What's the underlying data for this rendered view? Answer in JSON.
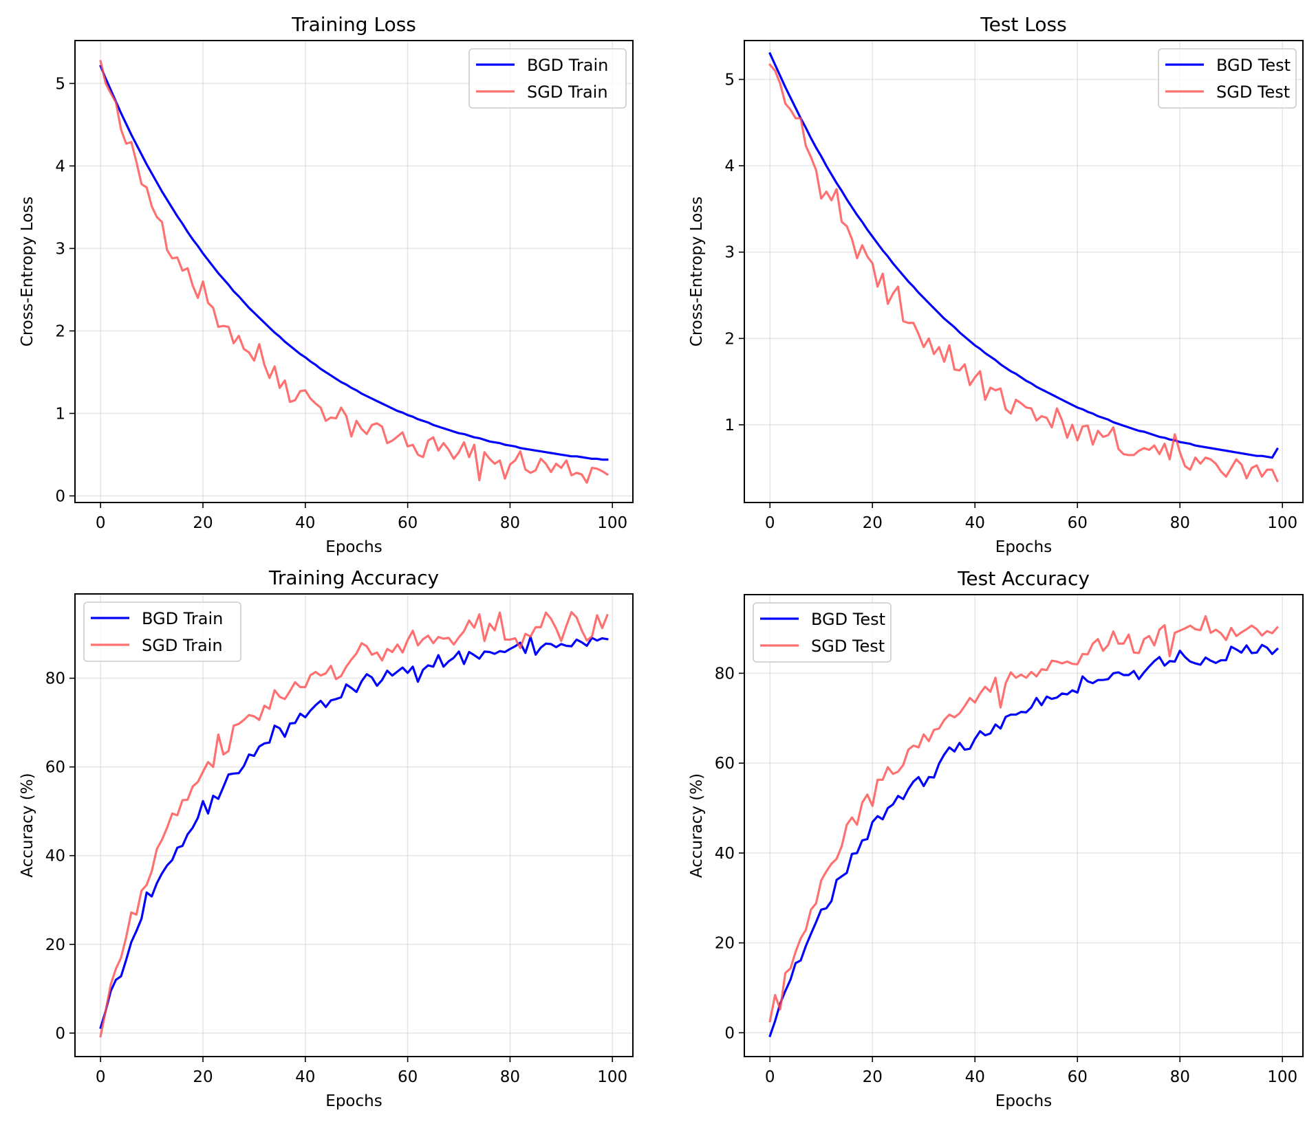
{
  "figure": {
    "layout": "2x2 grid"
  },
  "chart_data": [
    {
      "id": "training-loss",
      "type": "line",
      "title": "Training Loss",
      "xlabel": "Epochs",
      "ylabel": "Cross-Entropy Loss",
      "xlim": [
        -5,
        104
      ],
      "ylim": [
        -0.08,
        5.52
      ],
      "xticks": [
        0,
        20,
        40,
        60,
        80,
        100
      ],
      "yticks": [
        0,
        1,
        2,
        3,
        4,
        5
      ],
      "grid": true,
      "legend": "top-right",
      "x_range": [
        0,
        99
      ],
      "series": [
        {
          "name": "BGD Train",
          "color": "#0000ff",
          "values": [
            5.21,
            5.06,
            4.92,
            4.78,
            4.64,
            4.51,
            4.38,
            4.26,
            4.14,
            4.02,
            3.91,
            3.8,
            3.69,
            3.59,
            3.49,
            3.39,
            3.3,
            3.2,
            3.11,
            3.03,
            2.94,
            2.86,
            2.78,
            2.7,
            2.63,
            2.56,
            2.48,
            2.42,
            2.35,
            2.28,
            2.22,
            2.16,
            2.1,
            2.04,
            1.98,
            1.93,
            1.87,
            1.82,
            1.77,
            1.72,
            1.68,
            1.63,
            1.59,
            1.54,
            1.5,
            1.46,
            1.42,
            1.38,
            1.35,
            1.31,
            1.28,
            1.24,
            1.21,
            1.18,
            1.15,
            1.12,
            1.09,
            1.06,
            1.03,
            1.01,
            0.98,
            0.96,
            0.93,
            0.91,
            0.89,
            0.86,
            0.84,
            0.82,
            0.8,
            0.78,
            0.76,
            0.75,
            0.73,
            0.71,
            0.7,
            0.68,
            0.66,
            0.65,
            0.64,
            0.62,
            0.61,
            0.6,
            0.58,
            0.57,
            0.56,
            0.55,
            0.54,
            0.53,
            0.52,
            0.51,
            0.5,
            0.49,
            0.48,
            0.48,
            0.47,
            0.46,
            0.45,
            0.45,
            0.44,
            0.44
          ]
        },
        {
          "name": "SGD Train",
          "color": "#ff4d4d",
          "values": [
            5.27,
            5.0,
            4.88,
            4.77,
            4.44,
            4.27,
            4.29,
            4.05,
            3.78,
            3.74,
            3.51,
            3.38,
            3.32,
            2.98,
            2.88,
            2.89,
            2.73,
            2.76,
            2.55,
            2.4,
            2.6,
            2.34,
            2.28,
            2.05,
            2.06,
            2.05,
            1.85,
            1.94,
            1.78,
            1.74,
            1.64,
            1.84,
            1.59,
            1.43,
            1.57,
            1.31,
            1.4,
            1.14,
            1.16,
            1.27,
            1.28,
            1.18,
            1.12,
            1.07,
            0.91,
            0.95,
            0.94,
            1.07,
            0.97,
            0.72,
            0.91,
            0.81,
            0.75,
            0.86,
            0.88,
            0.84,
            0.64,
            0.67,
            0.72,
            0.77,
            0.6,
            0.62,
            0.5,
            0.47,
            0.67,
            0.71,
            0.55,
            0.64,
            0.56,
            0.45,
            0.53,
            0.65,
            0.47,
            0.62,
            0.19,
            0.53,
            0.45,
            0.39,
            0.43,
            0.21,
            0.38,
            0.43,
            0.54,
            0.32,
            0.28,
            0.31,
            0.45,
            0.39,
            0.29,
            0.39,
            0.34,
            0.43,
            0.25,
            0.28,
            0.26,
            0.16,
            0.34,
            0.33,
            0.3,
            0.26
          ]
        }
      ]
    },
    {
      "id": "test-loss",
      "type": "line",
      "title": "Test Loss",
      "xlabel": "Epochs",
      "ylabel": "Cross-Entropy Loss",
      "xlim": [
        -5,
        104
      ],
      "ylim": [
        0.1,
        5.45
      ],
      "xticks": [
        0,
        20,
        40,
        60,
        80,
        100
      ],
      "yticks": [
        1,
        2,
        3,
        4,
        5
      ],
      "grid": true,
      "legend": "top-right",
      "x_range": [
        0,
        99
      ],
      "series": [
        {
          "name": "BGD Test",
          "color": "#0000ff",
          "values": [
            5.3,
            5.17,
            5.04,
            4.91,
            4.79,
            4.67,
            4.55,
            4.44,
            4.32,
            4.21,
            4.11,
            4.0,
            3.9,
            3.8,
            3.71,
            3.61,
            3.52,
            3.43,
            3.35,
            3.26,
            3.18,
            3.1,
            3.02,
            2.95,
            2.87,
            2.8,
            2.73,
            2.66,
            2.6,
            2.53,
            2.47,
            2.41,
            2.35,
            2.29,
            2.23,
            2.18,
            2.13,
            2.07,
            2.02,
            1.97,
            1.92,
            1.88,
            1.83,
            1.79,
            1.75,
            1.7,
            1.66,
            1.62,
            1.59,
            1.55,
            1.51,
            1.48,
            1.44,
            1.41,
            1.38,
            1.35,
            1.32,
            1.29,
            1.26,
            1.23,
            1.2,
            1.18,
            1.15,
            1.13,
            1.1,
            1.08,
            1.06,
            1.03,
            1.01,
            0.99,
            0.97,
            0.95,
            0.93,
            0.92,
            0.9,
            0.88,
            0.86,
            0.85,
            0.83,
            0.82,
            0.8,
            0.79,
            0.78,
            0.76,
            0.75,
            0.74,
            0.73,
            0.72,
            0.71,
            0.7,
            0.69,
            0.68,
            0.67,
            0.66,
            0.65,
            0.64,
            0.64,
            0.63,
            0.62,
            0.72
          ]
        },
        {
          "name": "SGD Test",
          "color": "#ff4d4d",
          "values": [
            5.17,
            5.1,
            4.95,
            4.72,
            4.65,
            4.55,
            4.55,
            4.23,
            4.1,
            3.95,
            3.62,
            3.7,
            3.6,
            3.73,
            3.35,
            3.3,
            3.15,
            2.93,
            3.08,
            2.95,
            2.87,
            2.6,
            2.75,
            2.4,
            2.52,
            2.6,
            2.2,
            2.18,
            2.18,
            2.05,
            1.9,
            2.0,
            1.82,
            1.9,
            1.73,
            1.92,
            1.64,
            1.63,
            1.7,
            1.46,
            1.55,
            1.62,
            1.29,
            1.43,
            1.4,
            1.42,
            1.18,
            1.13,
            1.29,
            1.25,
            1.2,
            1.19,
            1.05,
            1.1,
            1.08,
            0.97,
            1.19,
            1.05,
            0.85,
            1.0,
            0.82,
            0.98,
            0.99,
            0.77,
            0.93,
            0.86,
            0.88,
            0.97,
            0.72,
            0.66,
            0.65,
            0.65,
            0.7,
            0.73,
            0.71,
            0.76,
            0.66,
            0.78,
            0.6,
            0.89,
            0.68,
            0.52,
            0.48,
            0.62,
            0.55,
            0.62,
            0.6,
            0.55,
            0.46,
            0.4,
            0.5,
            0.6,
            0.54,
            0.38,
            0.5,
            0.53,
            0.4,
            0.48,
            0.48,
            0.35
          ]
        }
      ]
    },
    {
      "id": "training-accuracy",
      "type": "line",
      "title": "Training Accuracy",
      "xlabel": "Epochs",
      "ylabel": "Accuracy (%)",
      "xlim": [
        -5,
        104
      ],
      "ylim": [
        -5.3,
        99
      ],
      "xticks": [
        0,
        20,
        40,
        60,
        80,
        100
      ],
      "yticks": [
        0,
        20,
        40,
        60,
        80
      ],
      "grid": true,
      "legend": "top-left",
      "x_range": [
        0,
        99
      ],
      "series": [
        {
          "name": "BGD Train",
          "color": "#0000ff",
          "values": [
            1.2,
            5.0,
            9.5,
            12.0,
            12.8,
            16.5,
            20.5,
            23.0,
            25.8,
            31.7,
            30.8,
            33.8,
            36.0,
            37.8,
            39.0,
            41.8,
            42.2,
            44.8,
            46.3,
            48.5,
            52.3,
            49.5,
            53.5,
            52.8,
            55.5,
            58.3,
            58.5,
            58.6,
            60.2,
            62.8,
            62.5,
            64.6,
            65.3,
            65.5,
            69.3,
            68.7,
            66.8,
            69.8,
            69.9,
            72.0,
            71.2,
            72.7,
            73.9,
            74.9,
            73.5,
            75.0,
            75.3,
            75.7,
            78.6,
            77.8,
            76.9,
            79.3,
            80.9,
            80.2,
            78.3,
            79.6,
            81.7,
            80.6,
            81.5,
            82.4,
            81.2,
            82.6,
            79.2,
            81.9,
            82.9,
            82.6,
            85.2,
            82.6,
            83.8,
            84.6,
            86.0,
            83.2,
            85.9,
            85.2,
            84.4,
            86.0,
            85.9,
            85.5,
            86.1,
            85.9,
            86.6,
            87.2,
            88.0,
            85.7,
            89.3,
            85.3,
            86.9,
            87.8,
            87.7,
            87.0,
            87.7,
            87.3,
            87.2,
            88.7,
            88.1,
            87.3,
            89.1,
            88.5,
            89.0,
            88.8
          ]
        },
        {
          "name": "SGD Train",
          "color": "#ff4d4d",
          "values": [
            -0.7,
            5.0,
            11.0,
            14.5,
            17.0,
            21.6,
            27.2,
            26.7,
            32.1,
            33.4,
            36.5,
            41.5,
            43.6,
            46.3,
            49.5,
            49.1,
            52.5,
            52.6,
            55.6,
            56.6,
            58.9,
            61.1,
            60.0,
            67.3,
            62.8,
            63.6,
            69.3,
            69.7,
            70.6,
            71.7,
            71.4,
            70.6,
            73.8,
            73.1,
            77.3,
            75.8,
            75.3,
            77.1,
            79.1,
            78.0,
            78.0,
            80.7,
            81.4,
            80.6,
            81.1,
            82.8,
            79.8,
            80.5,
            82.6,
            84.2,
            85.6,
            87.9,
            87.2,
            85.3,
            85.8,
            84.0,
            86.6,
            85.9,
            87.6,
            85.8,
            88.6,
            90.7,
            87.4,
            88.8,
            89.6,
            87.9,
            89.3,
            88.9,
            89.1,
            87.6,
            89.2,
            90.6,
            93.0,
            91.4,
            94.4,
            88.4,
            92.3,
            90.8,
            94.8,
            88.7,
            88.7,
            89.0,
            86.8,
            90.0,
            89.4,
            91.5,
            91.5,
            94.8,
            93.4,
            91.2,
            88.4,
            91.8,
            94.9,
            93.7,
            90.8,
            88.5,
            89.4,
            94.2,
            91.3,
            94.2
          ]
        }
      ]
    },
    {
      "id": "test-accuracy",
      "type": "line",
      "title": "Test Accuracy",
      "xlabel": "Epochs",
      "ylabel": "Accuracy (%)",
      "xlim": [
        -5,
        104
      ],
      "ylim": [
        -5.3,
        97.5
      ],
      "xticks": [
        0,
        20,
        40,
        60,
        80,
        100
      ],
      "yticks": [
        0,
        20,
        40,
        60,
        80
      ],
      "grid": true,
      "legend": "top-left",
      "x_range": [
        0,
        99
      ],
      "series": [
        {
          "name": "BGD Test",
          "color": "#0000ff",
          "values": [
            -0.7,
            2.6,
            6.5,
            9.3,
            11.8,
            15.5,
            16.1,
            19.3,
            22.0,
            24.6,
            27.4,
            27.7,
            29.3,
            34.0,
            34.8,
            35.6,
            39.8,
            40.0,
            42.8,
            43.1,
            46.9,
            48.2,
            47.5,
            50.0,
            50.8,
            52.7,
            52.0,
            54.2,
            55.9,
            56.9,
            54.9,
            56.9,
            56.8,
            59.9,
            61.9,
            63.5,
            62.6,
            64.5,
            63.0,
            63.2,
            65.4,
            67.1,
            66.2,
            66.6,
            68.6,
            67.7,
            70.3,
            70.8,
            70.8,
            71.4,
            71.3,
            72.4,
            74.5,
            72.9,
            74.8,
            74.3,
            74.6,
            75.5,
            75.3,
            76.2,
            75.7,
            79.3,
            78.2,
            77.8,
            78.5,
            78.5,
            78.7,
            80.0,
            80.2,
            79.6,
            79.6,
            80.5,
            78.7,
            80.2,
            81.5,
            82.7,
            83.6,
            81.7,
            82.7,
            82.6,
            85.0,
            83.6,
            82.6,
            82.2,
            81.9,
            83.5,
            82.8,
            82.3,
            82.9,
            82.9,
            85.9,
            85.3,
            84.6,
            86.2,
            84.5,
            84.6,
            86.3,
            85.7,
            84.3,
            85.4
          ]
        },
        {
          "name": "SGD Test",
          "color": "#ff4d4d",
          "values": [
            2.6,
            8.4,
            5.2,
            13.3,
            14.3,
            18.0,
            21.0,
            22.9,
            27.4,
            28.8,
            33.9,
            35.9,
            37.6,
            38.7,
            41.5,
            46.3,
            47.9,
            46.3,
            51.2,
            53.0,
            50.5,
            56.3,
            56.3,
            59.1,
            57.6,
            58.1,
            59.6,
            63.0,
            63.9,
            63.5,
            66.4,
            64.9,
            67.4,
            67.7,
            69.6,
            70.8,
            70.2,
            71.1,
            72.7,
            74.5,
            73.5,
            75.5,
            77.0,
            75.9,
            79.0,
            72.4,
            77.8,
            80.2,
            79.0,
            79.7,
            79.0,
            80.3,
            79.3,
            80.9,
            80.7,
            82.8,
            82.6,
            82.2,
            82.6,
            82.1,
            82.0,
            84.3,
            84.2,
            86.6,
            87.6,
            85.0,
            86.3,
            89.3,
            86.6,
            86.6,
            88.6,
            84.6,
            84.5,
            87.6,
            88.3,
            86.2,
            89.7,
            90.7,
            83.8,
            89.0,
            89.5,
            90.0,
            90.6,
            89.8,
            89.6,
            92.7,
            89.0,
            89.7,
            88.9,
            87.4,
            90.1,
            88.3,
            89.1,
            89.8,
            90.6,
            89.8,
            88.4,
            89.4,
            88.9,
            90.2
          ]
        }
      ]
    }
  ]
}
